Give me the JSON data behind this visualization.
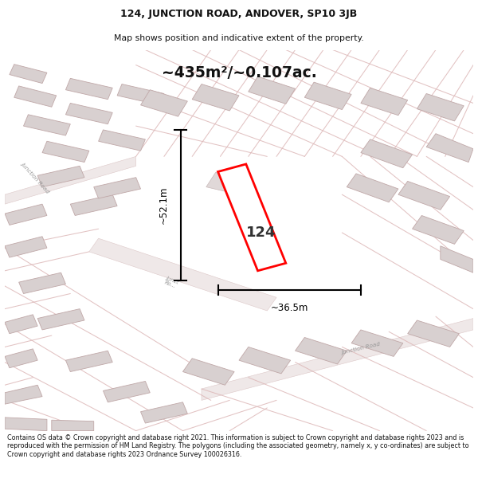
{
  "title_line1": "124, JUNCTION ROAD, ANDOVER, SP10 3JB",
  "title_line2": "Map shows position and indicative extent of the property.",
  "area_text": "~435m²/~0.107ac.",
  "label_124": "124",
  "dim_vertical": "~52.1m",
  "dim_horizontal": "~36.5m",
  "footer_text": "Contains OS data © Crown copyright and database right 2021. This information is subject to Crown copyright and database rights 2023 and is reproduced with the permission of HM Land Registry. The polygons (including the associated geometry, namely x, y co-ordinates) are subject to Crown copyright and database rights 2023 Ordnance Survey 100026316.",
  "map_bg": "#f2eeee",
  "road_fill": "#efe8e8",
  "road_edge": "#ddc8c8",
  "building_fill": "#d8d0d0",
  "building_edge": "#c0a8a8",
  "prop_fill": "#ffffff",
  "prop_edge": "#ff0000",
  "road_line_color": "#ddb8b8",
  "road_label_color": "#999999",
  "title_color": "#111111",
  "dim_color": "#111111",
  "footer_color": "#111111"
}
